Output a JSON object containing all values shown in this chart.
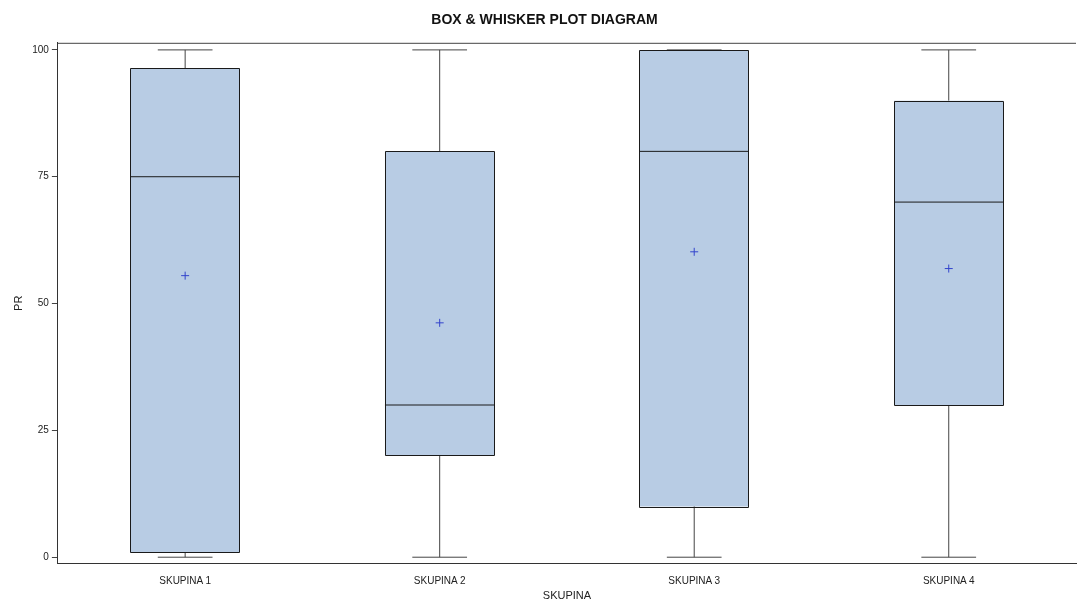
{
  "chart_data": {
    "type": "box",
    "title": "BOX & WHISKER PLOT DIAGRAM",
    "xlabel": "SKUPINA",
    "ylabel": "PR",
    "categories": [
      "SKUPINA 1",
      "SKUPINA 2",
      "SKUPINA 3",
      "SKUPINA 4"
    ],
    "series": [
      {
        "color": "#b8cce4",
        "boxes": [
          {
            "low": 0,
            "q1": 1,
            "median": 75,
            "q3": 96.4,
            "high": 100,
            "mean": 55.5
          },
          {
            "low": 0,
            "q1": 20,
            "median": 30,
            "q3": 80,
            "high": 100,
            "mean": 46.2
          },
          {
            "low": 0,
            "q1": 10,
            "median": 80,
            "q3": 100,
            "high": 100,
            "mean": 60.2
          },
          {
            "low": 0,
            "q1": 30,
            "median": 70,
            "q3": 90,
            "high": 100,
            "mean": 56.9
          }
        ]
      }
    ],
    "ylim": [
      -1.3,
      101.4
    ],
    "yticks": [
      0,
      25,
      50,
      75,
      100
    ],
    "grid": false,
    "legend": false,
    "marker": "cross"
  }
}
